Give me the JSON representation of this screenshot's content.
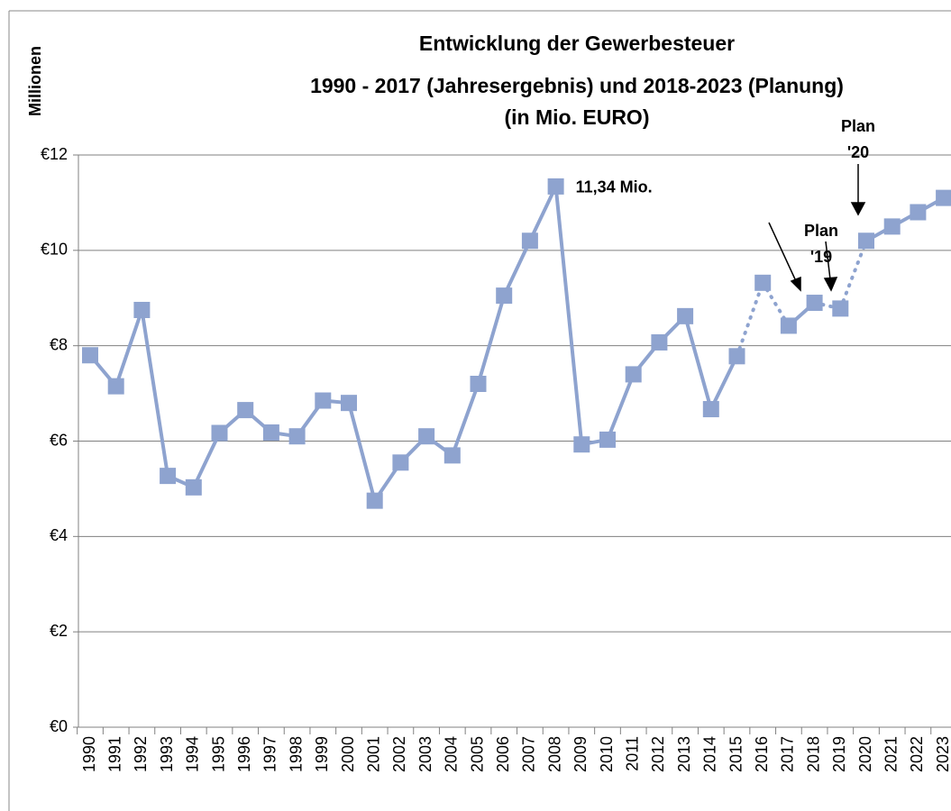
{
  "chart_data": {
    "type": "line",
    "title": [
      "Entwicklung der Gewerbesteuer",
      "1990 - 2017 (Jahresergebnis) und 2018-2023 (Planung)",
      "(in Mio. EURO)"
    ],
    "y_label": "Millionen",
    "categories": [
      "1990",
      "1991",
      "1992",
      "1993",
      "1994",
      "1995",
      "1996",
      "1997",
      "1998",
      "1999",
      "2000",
      "2001",
      "2002",
      "2003",
      "2004",
      "2005",
      "2006",
      "2007",
      "2008",
      "2009",
      "2010",
      "2011",
      "2012",
      "2013",
      "2014",
      "2015",
      "2016",
      "2017",
      "2018",
      "2019",
      "2020",
      "2021",
      "2022",
      "2023"
    ],
    "series": [
      {
        "color": "#8ea3cf",
        "values": [
          7.8,
          7.15,
          8.75,
          5.27,
          5.03,
          6.17,
          6.65,
          6.18,
          6.1,
          6.85,
          6.8,
          4.75,
          5.55,
          6.1,
          5.7,
          7.2,
          9.05,
          10.2,
          11.34,
          5.93,
          6.03,
          7.4,
          8.07,
          8.62,
          6.67,
          7.78,
          9.32,
          8.42,
          8.9,
          8.78,
          10.2,
          10.5,
          10.8,
          11.1
        ],
        "value_labels": [
          null,
          null,
          null,
          null,
          null,
          null,
          null,
          null,
          null,
          null,
          null,
          null,
          null,
          null,
          null,
          null,
          null,
          null,
          "11,34 Mio.",
          null,
          null,
          null,
          null,
          null,
          null,
          null,
          null,
          null,
          null,
          null,
          null,
          null,
          null,
          null
        ]
      }
    ],
    "ylim": [
      0,
      12
    ],
    "yticks": [
      {
        "value": 0,
        "label": "€0"
      },
      {
        "value": 2,
        "label": "€2"
      },
      {
        "value": 4,
        "label": "€4"
      },
      {
        "value": 6,
        "label": "€6"
      },
      {
        "value": 8,
        "label": "€8"
      },
      {
        "value": 10,
        "label": "€10"
      },
      {
        "value": 12,
        "label": "€12"
      }
    ],
    "grid": true,
    "annotations": [
      [
        "Plan",
        "'19"
      ],
      [
        "Plan",
        "'20"
      ]
    ]
  }
}
